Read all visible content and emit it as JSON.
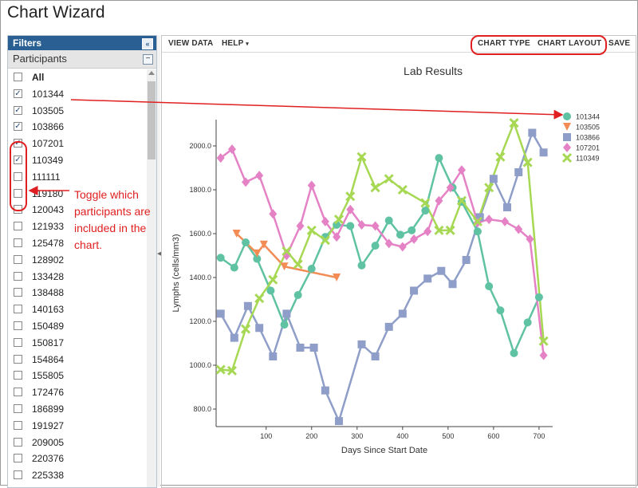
{
  "page": {
    "title": "Chart Wizard"
  },
  "filters": {
    "header": "Filters",
    "collapse_icon": "«",
    "participants_label": "Participants",
    "participants": [
      {
        "id": "All",
        "checked": false
      },
      {
        "id": "101344",
        "checked": true
      },
      {
        "id": "103505",
        "checked": true
      },
      {
        "id": "103866",
        "checked": true
      },
      {
        "id": "107201",
        "checked": true
      },
      {
        "id": "110349",
        "checked": true
      },
      {
        "id": "111111",
        "checked": false
      },
      {
        "id": "119180",
        "checked": false
      },
      {
        "id": "120043",
        "checked": false
      },
      {
        "id": "121933",
        "checked": false
      },
      {
        "id": "125478",
        "checked": false
      },
      {
        "id": "128902",
        "checked": false
      },
      {
        "id": "133428",
        "checked": false
      },
      {
        "id": "138488",
        "checked": false
      },
      {
        "id": "140163",
        "checked": false
      },
      {
        "id": "150489",
        "checked": false
      },
      {
        "id": "150817",
        "checked": false
      },
      {
        "id": "154864",
        "checked": false
      },
      {
        "id": "155805",
        "checked": false
      },
      {
        "id": "172476",
        "checked": false
      },
      {
        "id": "186899",
        "checked": false
      },
      {
        "id": "191927",
        "checked": false
      },
      {
        "id": "209005",
        "checked": false
      },
      {
        "id": "220376",
        "checked": false
      },
      {
        "id": "225338",
        "checked": false
      }
    ]
  },
  "toolbar": {
    "view_data": "VIEW DATA",
    "help": "HELP",
    "help_caret": "▾",
    "chart_type": "CHART TYPE",
    "chart_layout": "CHART LAYOUT",
    "save": "SAVE"
  },
  "annotation": {
    "text": "Toggle which participants are included in the chart.",
    "color": "#e02020"
  },
  "chart_data": {
    "type": "line",
    "title": "Lab Results",
    "xlabel": "Days Since Start Date",
    "ylabel": "Lymphs (cells/mm3)",
    "xlim": [
      -10,
      730
    ],
    "ylim": [
      720,
      2120
    ],
    "xticks": [
      100,
      200,
      300,
      400,
      500,
      600,
      700
    ],
    "yticks": [
      800,
      1000,
      1200,
      1400,
      1600,
      1800,
      2000
    ],
    "ytick_labels": [
      "800.0",
      "1000.0",
      "1200.0",
      "1400.0",
      "1600.0",
      "1800.0",
      "2000.0"
    ],
    "legend_position": "top-right",
    "series": [
      {
        "name": "101344",
        "color": "#5fc2a2",
        "marker": "circle",
        "points": [
          [
            0,
            1490
          ],
          [
            30,
            1445
          ],
          [
            55,
            1560
          ],
          [
            80,
            1485
          ],
          [
            110,
            1340
          ],
          [
            140,
            1185
          ],
          [
            170,
            1320
          ],
          [
            200,
            1440
          ],
          [
            230,
            1585
          ],
          [
            255,
            1640
          ],
          [
            285,
            1635
          ],
          [
            310,
            1455
          ],
          [
            340,
            1545
          ],
          [
            370,
            1660
          ],
          [
            395,
            1595
          ],
          [
            420,
            1615
          ],
          [
            450,
            1705
          ],
          [
            480,
            1945
          ],
          [
            510,
            1810
          ],
          [
            530,
            1745
          ],
          [
            565,
            1610
          ],
          [
            590,
            1360
          ],
          [
            615,
            1250
          ],
          [
            645,
            1055
          ],
          [
            675,
            1195
          ],
          [
            700,
            1310
          ]
        ]
      },
      {
        "name": "103505",
        "color": "#f28c54",
        "marker": "triangle-down",
        "points": [
          [
            35,
            1600
          ],
          [
            80,
            1510
          ],
          [
            95,
            1550
          ],
          [
            140,
            1450
          ],
          [
            255,
            1400
          ]
        ]
      },
      {
        "name": "103866",
        "color": "#8f9ec8",
        "marker": "square",
        "points": [
          [
            0,
            1235
          ],
          [
            30,
            1125
          ],
          [
            60,
            1270
          ],
          [
            85,
            1170
          ],
          [
            115,
            1040
          ],
          [
            145,
            1235
          ],
          [
            175,
            1080
          ],
          [
            205,
            1080
          ],
          [
            230,
            885
          ],
          [
            260,
            745
          ],
          [
            310,
            1095
          ],
          [
            340,
            1040
          ],
          [
            370,
            1175
          ],
          [
            400,
            1235
          ],
          [
            425,
            1340
          ],
          [
            455,
            1395
          ],
          [
            485,
            1430
          ],
          [
            510,
            1370
          ],
          [
            540,
            1480
          ],
          [
            570,
            1675
          ],
          [
            600,
            1850
          ],
          [
            630,
            1720
          ],
          [
            655,
            1880
          ],
          [
            685,
            2060
          ],
          [
            710,
            1970
          ]
        ]
      },
      {
        "name": "107201",
        "color": "#e582c5",
        "marker": "diamond",
        "points": [
          [
            0,
            1945
          ],
          [
            25,
            1985
          ],
          [
            55,
            1835
          ],
          [
            85,
            1865
          ],
          [
            115,
            1690
          ],
          [
            145,
            1500
          ],
          [
            175,
            1635
          ],
          [
            200,
            1820
          ],
          [
            230,
            1655
          ],
          [
            255,
            1585
          ],
          [
            285,
            1710
          ],
          [
            310,
            1640
          ],
          [
            340,
            1635
          ],
          [
            370,
            1555
          ],
          [
            400,
            1540
          ],
          [
            425,
            1575
          ],
          [
            455,
            1610
          ],
          [
            480,
            1750
          ],
          [
            505,
            1810
          ],
          [
            530,
            1890
          ],
          [
            565,
            1650
          ],
          [
            590,
            1665
          ],
          [
            625,
            1655
          ],
          [
            655,
            1620
          ],
          [
            680,
            1575
          ],
          [
            710,
            1045
          ]
        ]
      },
      {
        "name": "110349",
        "color": "#a6d854",
        "marker": "x",
        "points": [
          [
            0,
            980
          ],
          [
            25,
            975
          ],
          [
            55,
            1165
          ],
          [
            85,
            1305
          ],
          [
            115,
            1390
          ],
          [
            145,
            1520
          ],
          [
            170,
            1460
          ],
          [
            200,
            1615
          ],
          [
            230,
            1570
          ],
          [
            260,
            1665
          ],
          [
            285,
            1770
          ],
          [
            310,
            1950
          ],
          [
            340,
            1810
          ],
          [
            370,
            1850
          ],
          [
            400,
            1800
          ],
          [
            450,
            1740
          ],
          [
            480,
            1615
          ],
          [
            505,
            1615
          ],
          [
            530,
            1750
          ],
          [
            565,
            1655
          ],
          [
            590,
            1810
          ],
          [
            615,
            1950
          ],
          [
            645,
            2105
          ],
          [
            675,
            1925
          ],
          [
            710,
            1110
          ]
        ]
      }
    ]
  }
}
